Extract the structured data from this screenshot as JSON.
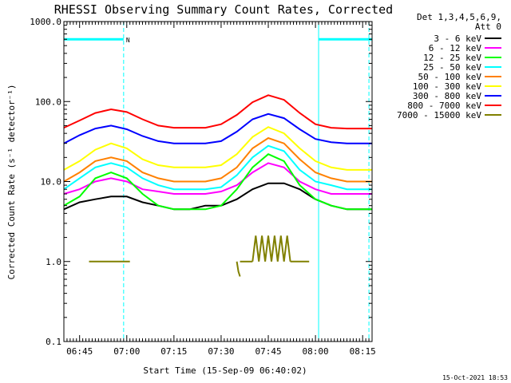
{
  "chart_data": {
    "type": "line",
    "title": "RHESSI Observing Summary Count Rates, Corrected",
    "xlabel": "Start Time (15-Sep-09 06:40:02)",
    "ylabel": "Corrected Count Rate (s⁻¹ detector⁻¹)",
    "y_scale": "log",
    "ylim": [
      0.1,
      1000
    ],
    "yticks": [
      {
        "value": 0.1,
        "label": "0.1"
      },
      {
        "value": 1,
        "label": "1.0"
      },
      {
        "value": 10,
        "label": "10.0"
      },
      {
        "value": 100,
        "label": "100.0"
      },
      {
        "value": 1000,
        "label": "1000.0"
      }
    ],
    "xlim_minutes": [
      0,
      98
    ],
    "xticks": [
      {
        "value": 5,
        "label": "06:45"
      },
      {
        "value": 20,
        "label": "07:00"
      },
      {
        "value": 35,
        "label": "07:15"
      },
      {
        "value": 50,
        "label": "07:30"
      },
      {
        "value": 65,
        "label": "07:45"
      },
      {
        "value": 80,
        "label": "08:00"
      },
      {
        "value": 95,
        "label": "08:15"
      }
    ],
    "legend_header": [
      "Det 1,3,4,5,6,9,",
      "Att 0"
    ],
    "legend_placement": "right",
    "series": [
      {
        "name": "3 - 6 keV",
        "color": "#000000",
        "x": [
          0,
          5,
          10,
          15,
          20,
          25,
          30,
          35,
          40,
          45,
          50,
          55,
          60,
          65,
          70,
          75,
          80,
          85,
          90,
          95,
          98
        ],
        "values": [
          4.5,
          5.5,
          6,
          6.5,
          6.5,
          5.5,
          5,
          4.5,
          4.5,
          5,
          5,
          6,
          8,
          9.5,
          9.5,
          8,
          6,
          5,
          4.5,
          4.5,
          4.5
        ]
      },
      {
        "name": "6 - 12 keV",
        "color": "#ff00ff",
        "x": [
          0,
          5,
          10,
          15,
          20,
          25,
          30,
          35,
          40,
          45,
          50,
          55,
          60,
          65,
          70,
          75,
          80,
          85,
          90,
          95,
          98
        ],
        "values": [
          7,
          8,
          10,
          11,
          10,
          8,
          7.5,
          7,
          7,
          7,
          7.5,
          9,
          13,
          17,
          15,
          10,
          8,
          7,
          7,
          7,
          7
        ]
      },
      {
        "name": "12 - 25 keV",
        "color": "#00ff00",
        "x": [
          0,
          5,
          10,
          15,
          20,
          25,
          30,
          35,
          40,
          45,
          50,
          55,
          60,
          65,
          70,
          75,
          80,
          85,
          90,
          95,
          98
        ],
        "values": [
          5,
          6.5,
          11,
          13,
          11,
          7,
          5,
          4.5,
          4.5,
          4.5,
          5,
          8,
          15,
          22,
          18,
          9,
          6,
          5,
          4.5,
          4.5,
          4.5
        ]
      },
      {
        "name": "25 - 50 keV",
        "color": "#00ffff",
        "x": [
          0,
          5,
          10,
          15,
          20,
          25,
          30,
          35,
          40,
          45,
          50,
          55,
          60,
          65,
          70,
          75,
          80,
          85,
          90,
          95,
          98
        ],
        "values": [
          8,
          11,
          15,
          17,
          15,
          11,
          9,
          8,
          8,
          8,
          8.5,
          12,
          20,
          28,
          24,
          14,
          10,
          9,
          8,
          8,
          8
        ]
      },
      {
        "name": "50 - 100 keV",
        "color": "#ff8000",
        "x": [
          0,
          5,
          10,
          15,
          20,
          25,
          30,
          35,
          40,
          45,
          50,
          55,
          60,
          65,
          70,
          75,
          80,
          85,
          90,
          95,
          98
        ],
        "values": [
          10,
          13,
          18,
          20,
          18,
          13,
          11,
          10,
          10,
          10,
          11,
          15,
          26,
          35,
          30,
          19,
          13,
          11,
          10,
          10,
          10
        ]
      },
      {
        "name": "100 - 300 keV",
        "color": "#ffff00",
        "x": [
          0,
          5,
          10,
          15,
          20,
          25,
          30,
          35,
          40,
          45,
          50,
          55,
          60,
          65,
          70,
          75,
          80,
          85,
          90,
          95,
          98
        ],
        "values": [
          14,
          18,
          25,
          30,
          26,
          19,
          16,
          15,
          15,
          15,
          16,
          22,
          36,
          48,
          40,
          26,
          18,
          15,
          14,
          14,
          14
        ]
      },
      {
        "name": "300 - 800 keV",
        "color": "#0000ff",
        "x": [
          0,
          5,
          10,
          15,
          20,
          25,
          30,
          35,
          40,
          45,
          50,
          55,
          60,
          65,
          70,
          75,
          80,
          85,
          90,
          95,
          98
        ],
        "values": [
          30,
          38,
          46,
          50,
          45,
          37,
          32,
          30,
          30,
          30,
          32,
          42,
          60,
          70,
          62,
          45,
          34,
          31,
          30,
          30,
          30
        ]
      },
      {
        "name": "800 - 7000 keV",
        "color": "#ff0000",
        "x": [
          0,
          5,
          10,
          15,
          20,
          25,
          30,
          35,
          40,
          45,
          50,
          55,
          60,
          65,
          70,
          75,
          80,
          85,
          90,
          95,
          98
        ],
        "values": [
          47,
          58,
          72,
          80,
          74,
          60,
          50,
          47,
          47,
          47,
          52,
          68,
          98,
          120,
          105,
          72,
          52,
          47,
          46,
          46,
          46
        ]
      },
      {
        "name": "7000 - 15000 keV",
        "color": "#808000",
        "segments": [
          {
            "x": [
              8,
              9,
              10,
              11,
              12,
              13,
              14,
              15,
              16,
              17,
              18,
              19,
              20,
              21
            ],
            "values": [
              1,
              1,
              1,
              1,
              1,
              1,
              1,
              1,
              1,
              1,
              1,
              1,
              1,
              1
            ]
          },
          {
            "x": [
              55,
              55.5,
              56
            ],
            "values": [
              1,
              0.75,
              0.65
            ]
          },
          {
            "x": [
              56,
              57,
              58,
              59,
              60
            ],
            "values": [
              1,
              1,
              1,
              1,
              1
            ]
          },
          {
            "x": [
              60,
              61,
              62,
              63,
              64,
              65,
              66,
              67,
              68,
              69,
              70,
              71,
              72
            ],
            "values": [
              1,
              2.1,
              1,
              2.1,
              1,
              2.1,
              1,
              2.1,
              1,
              2.1,
              1,
              2.1,
              1
            ]
          },
          {
            "x": [
              72,
              74,
              76,
              78
            ],
            "values": [
              1,
              1,
              1,
              1
            ]
          }
        ]
      }
    ],
    "flag_bars": [
      {
        "color": "#00ffff",
        "x_range": [
          0,
          19
        ],
        "value": 600,
        "label": "N"
      },
      {
        "color": "#00ffff",
        "x_range": [
          81,
          98
        ],
        "value": 600,
        "label": ""
      }
    ],
    "boundary_lines": [
      {
        "color": "#00ffff",
        "style": "solid",
        "x": 0
      },
      {
        "color": "#00ffff",
        "style": "dashed",
        "x": 19
      },
      {
        "color": "#00ffff",
        "style": "solid",
        "x": 81
      },
      {
        "color": "#00ffff",
        "style": "dashed",
        "x": 97
      }
    ],
    "timestamp": "15-Oct-2021 18:53"
  }
}
